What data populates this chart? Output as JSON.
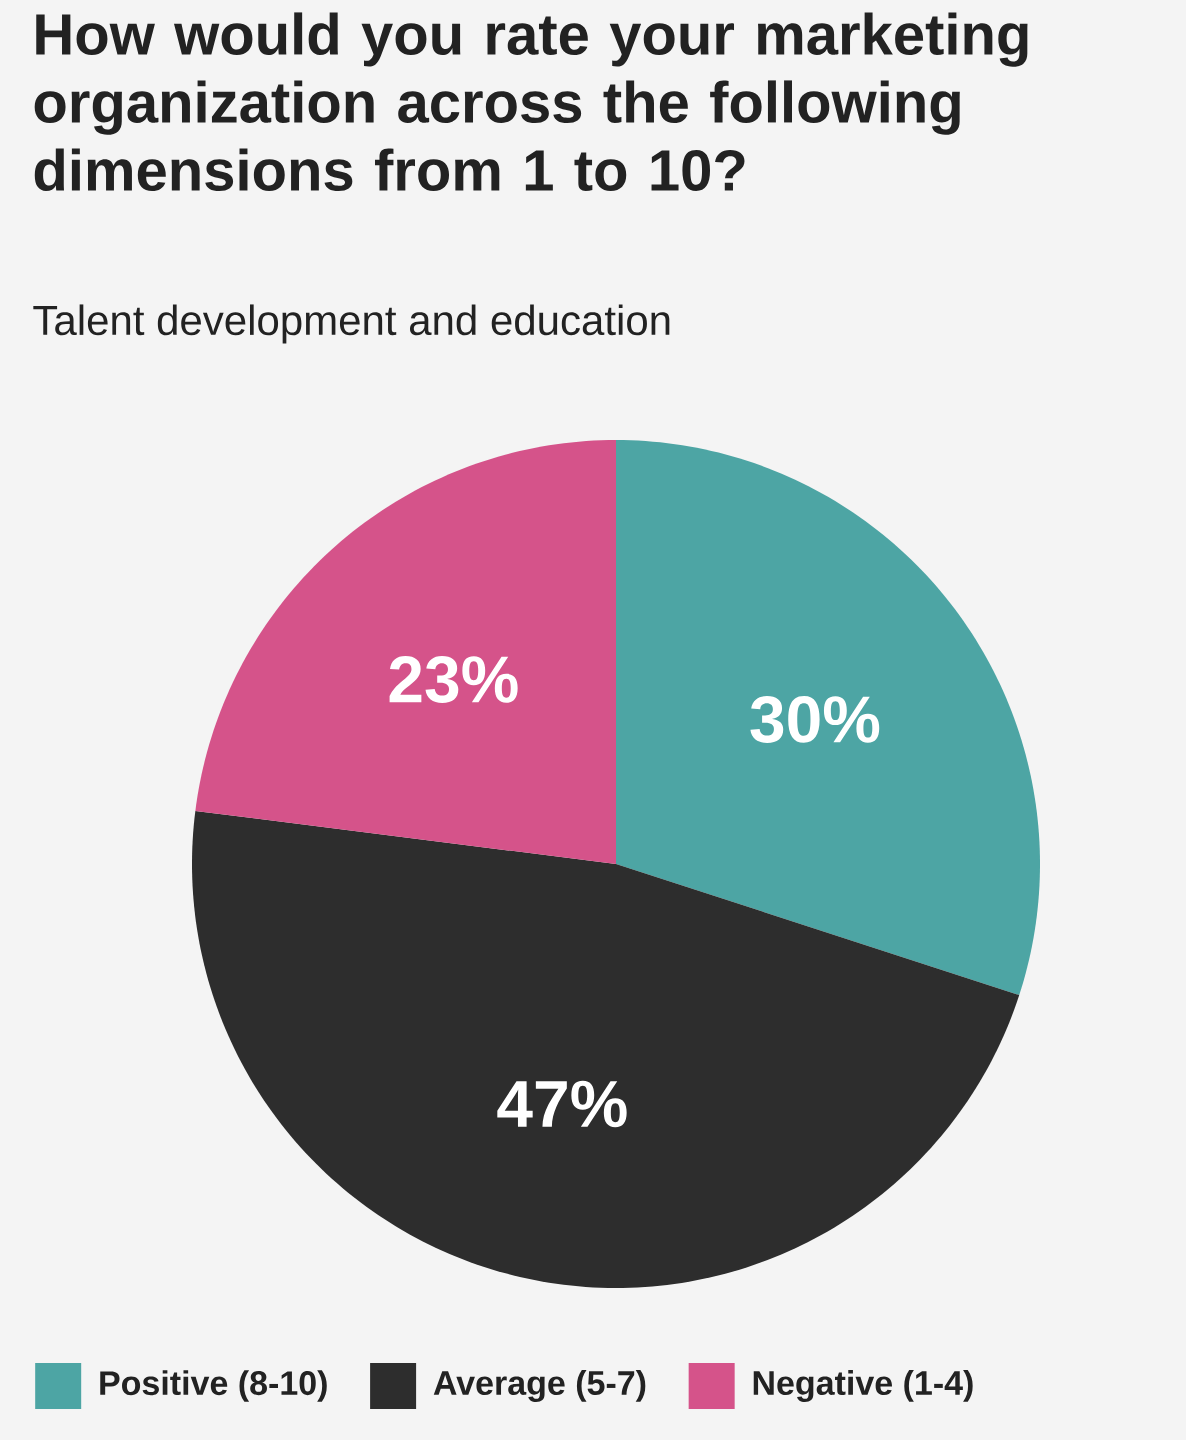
{
  "chart_data": {
    "type": "pie",
    "title": "How would you rate your marketing organization across the following dimensions from 1 to 10?",
    "subtitle": "Talent development and education",
    "categories": [
      "Positive (8-10)",
      "Average (5-7)",
      "Negative (1-4)"
    ],
    "values": [
      30,
      47,
      23
    ],
    "colors": [
      "#4da5a4",
      "#2d2d2d",
      "#d5538a"
    ],
    "value_labels": [
      "30%",
      "47%",
      "23%"
    ],
    "legend": "bottom"
  }
}
